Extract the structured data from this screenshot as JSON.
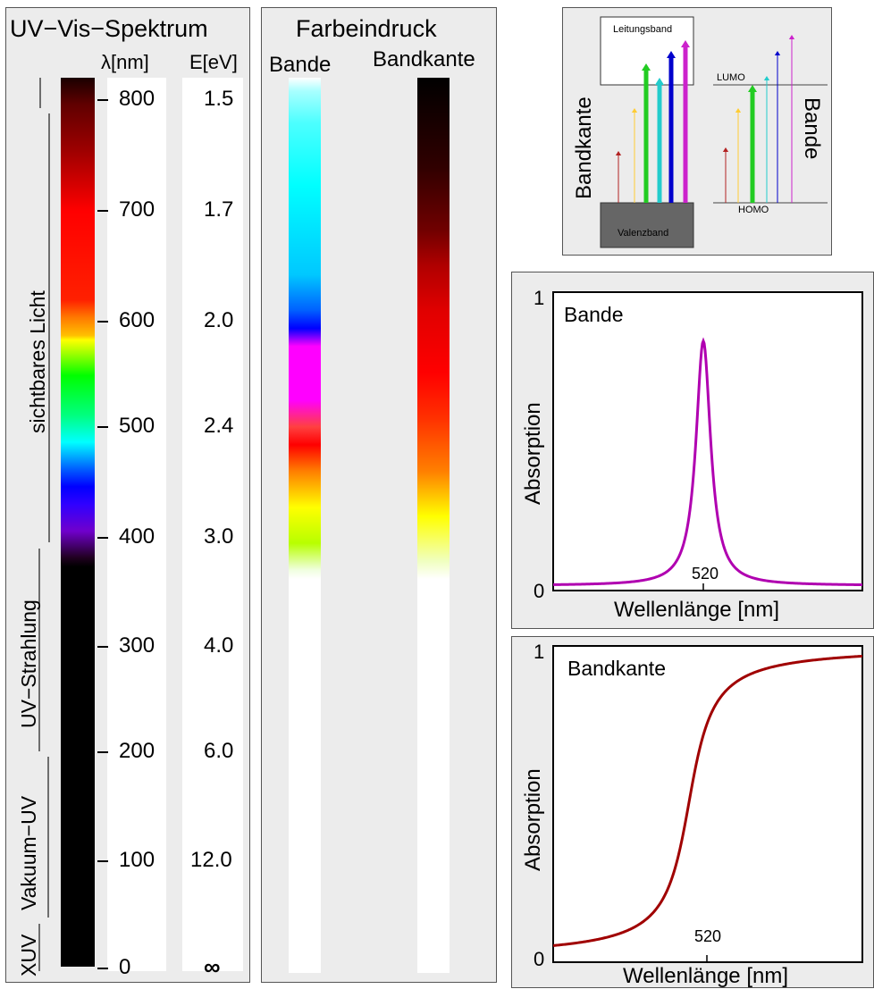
{
  "spectrum_panel": {
    "title": "UV−Vis−Spektrum",
    "col_lambda": "λ[nm]",
    "col_energy": "E[eV]",
    "regions": [
      "sichtbares Licht",
      "UV−Strahlung",
      "Vakuum−UV",
      "XUV"
    ],
    "ticks": [
      {
        "nm": "800",
        "ev": "1.5"
      },
      {
        "nm": "700",
        "ev": "1.7"
      },
      {
        "nm": "600",
        "ev": "2.0"
      },
      {
        "nm": "500",
        "ev": "2.4"
      },
      {
        "nm": "400",
        "ev": "3.0"
      },
      {
        "nm": "300",
        "ev": "4.0"
      },
      {
        "nm": "200",
        "ev": "6.0"
      },
      {
        "nm": "100",
        "ev": "12.0"
      },
      {
        "nm": "0",
        "ev": "∞"
      }
    ]
  },
  "color_panel": {
    "title": "Farbeindruck",
    "label_band": "Bande",
    "label_edge": "Bandkante"
  },
  "schema": {
    "conduction_band": "Leitungsband",
    "valence_band": "Valenzband",
    "lumo": "LUMO",
    "homo": "HOMO",
    "left_label": "Bandkante",
    "right_label": "Bande",
    "arrow_colors": [
      "#b22222",
      "#ffcc33",
      "#22cc22",
      "#22cccc",
      "#0000cc",
      "#cc22cc"
    ]
  },
  "chart_data": [
    {
      "type": "line",
      "label": "Bande",
      "xlabel": "Wellenlänge [nm]",
      "ylabel": "Absorption",
      "x_tick_labels": [
        "520"
      ],
      "y_tick_labels": [
        "0",
        "1"
      ],
      "ylim": [
        0,
        1
      ],
      "series_color": "#b000b0",
      "peak_x": 520,
      "peak_height": 0.85
    },
    {
      "type": "line",
      "label": "Bandkante",
      "xlabel": "Wellenlänge [nm]",
      "ylabel": "Absorption",
      "x_tick_labels": [
        "520"
      ],
      "y_tick_labels": [
        "0",
        "1"
      ],
      "ylim": [
        0,
        1
      ],
      "series_color": "#a00000",
      "edge_x": 520
    }
  ]
}
